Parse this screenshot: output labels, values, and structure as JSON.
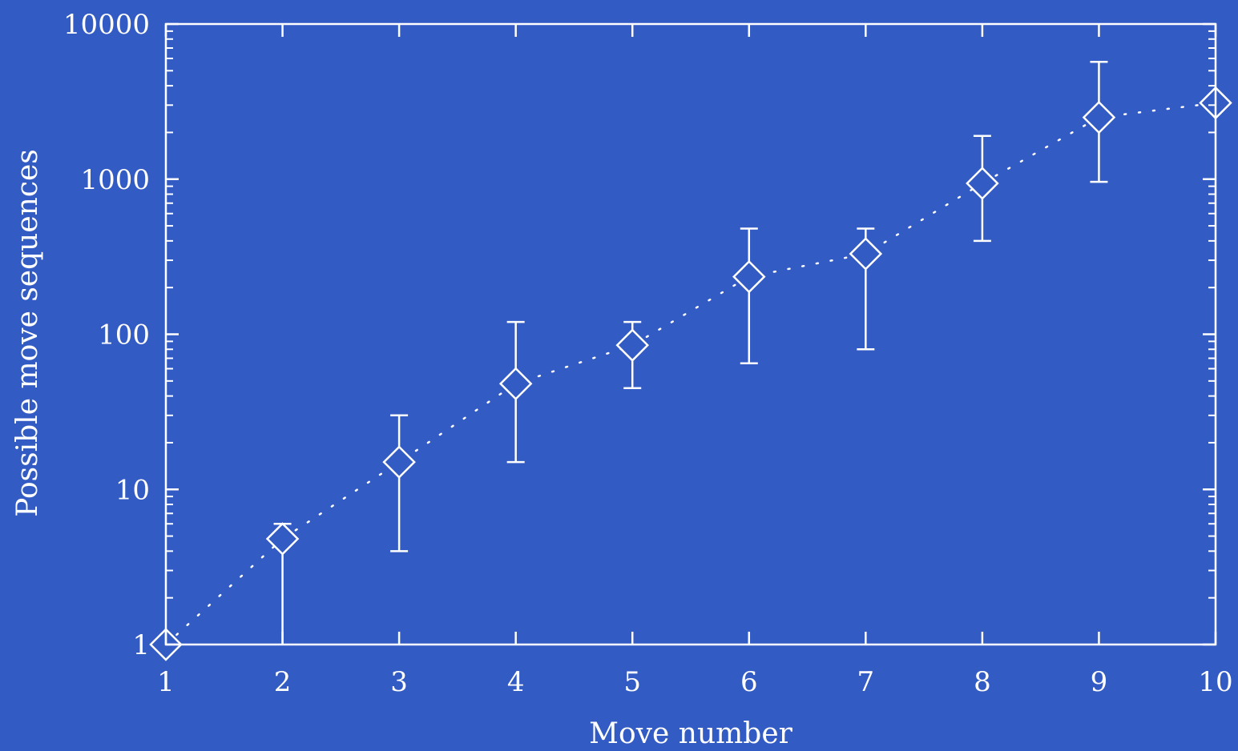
{
  "colors": {
    "background": "#335bc4",
    "foreground": "#ffffff"
  },
  "chart_data": {
    "type": "scatter",
    "title": "",
    "xlabel": "Move number",
    "ylabel": "Possible move sequences",
    "xlim": [
      1,
      10
    ],
    "ylim": [
      1,
      10000
    ],
    "yscale": "log",
    "grid": false,
    "legend": "none",
    "x_ticks": [
      "1",
      "2",
      "3",
      "4",
      "5",
      "6",
      "7",
      "8",
      "9",
      "10"
    ],
    "y_ticks": [
      "1",
      "10",
      "100",
      "1000",
      "10000"
    ],
    "marker": "diamond",
    "connector": "dotted",
    "points": [
      {
        "x": 1,
        "y": 1,
        "low": 1,
        "high": 1
      },
      {
        "x": 2,
        "y": 4.8,
        "low": 1,
        "high": 6
      },
      {
        "x": 3,
        "y": 15,
        "low": 4,
        "high": 30
      },
      {
        "x": 4,
        "y": 48,
        "low": 15,
        "high": 120
      },
      {
        "x": 5,
        "y": 85,
        "low": 45,
        "high": 120
      },
      {
        "x": 6,
        "y": 235,
        "low": 65,
        "high": 480
      },
      {
        "x": 7,
        "y": 330,
        "low": 80,
        "high": 480
      },
      {
        "x": 8,
        "y": 940,
        "low": 400,
        "high": 1900
      },
      {
        "x": 9,
        "y": 2500,
        "low": 960,
        "high": 5700
      },
      {
        "x": 10,
        "y": 3100,
        "low": 3100,
        "high": 3100
      }
    ]
  }
}
